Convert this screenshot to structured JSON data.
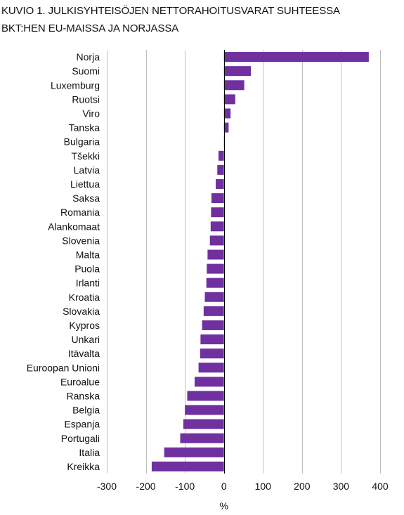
{
  "title_lines": [
    "KUVIO 1. JULKISYHTEISÖJEN NETTORAHOITUSVARAT SUHTEESSA",
    "BKT:HEN EU-MAISSA JA NORJASSA"
  ],
  "chart_data": {
    "type": "bar",
    "orientation": "horizontal",
    "title": "KUVIO 1. JULKISYHTEISÖJEN NETTORAHOITUSVARAT SUHTEESSA BKT:HEN EU-MAISSA JA NORJASSA",
    "xlabel": "%",
    "ylabel": "",
    "xlim": [
      -300,
      400
    ],
    "xticks": [
      -300,
      -200,
      -100,
      0,
      100,
      200,
      300,
      400
    ],
    "xtick_labels": [
      "-300",
      "-200",
      "-100",
      "0",
      "100",
      "200",
      "300",
      "400"
    ],
    "grid": true,
    "bar_color": "#7030a0",
    "grid_color": "#bfbfbf",
    "categories": [
      "Norja",
      "Suomi",
      "Luxemburg",
      "Ruotsi",
      "Viro",
      "Tanska",
      "Bulgaria",
      "Tšekki",
      "Latvia",
      "Liettua",
      "Saksa",
      "Romania",
      "Alankomaat",
      "Slovenia",
      "Malta",
      "Puola",
      "Irlanti",
      "Kroatia",
      "Slovakia",
      "Kypros",
      "Unkari",
      "Itävalta",
      "Euroopan Unioni",
      "Euroalue",
      "Ranska",
      "Belgia",
      "Espanja",
      "Portugali",
      "Italia",
      "Kreikka"
    ],
    "values": [
      371,
      69,
      52,
      29,
      17,
      12,
      1,
      -14,
      -17,
      -21,
      -32,
      -33,
      -34,
      -36,
      -42,
      -44,
      -45,
      -49,
      -52,
      -56,
      -60,
      -61,
      -65,
      -75,
      -94,
      -100,
      -104,
      -112,
      -153,
      -185
    ]
  }
}
